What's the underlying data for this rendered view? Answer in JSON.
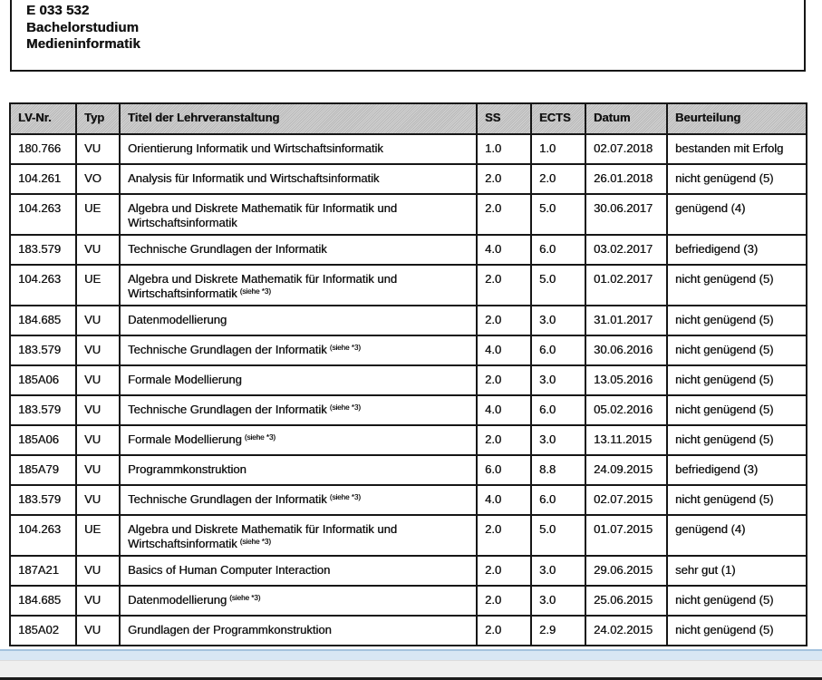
{
  "page": {
    "background": "#ffffff",
    "header_row_bg": "#c7c7c7",
    "border_color": "#161616",
    "statusbar_blue_color": "#d8e7f4",
    "statusbar_blue_edge": "#a4c3de",
    "statusbar_gray_color": "#efefef",
    "bottom_line_color": "#1c1c1c"
  },
  "program_box": {
    "lines": [
      "E 033 532",
      "Bachelorstudium",
      "Medieninformatik"
    ]
  },
  "table": {
    "headers": [
      "LV-Nr.",
      "Typ",
      "Titel der Lehrveranstaltung",
      "SS",
      "ECTS",
      "Datum",
      "Beurteilung"
    ],
    "rows": [
      {
        "nr": "180.766",
        "typ": "VU",
        "titel": "Orientierung Informatik und Wirtschaftsinformatik",
        "note": "",
        "ss": "1.0",
        "ects": "1.0",
        "datum": "02.07.2018",
        "beurteilung": "bestanden mit Erfolg"
      },
      {
        "nr": "104.261",
        "typ": "VO",
        "titel": "Analysis für Informatik und Wirtschaftsinformatik",
        "note": "",
        "ss": "2.0",
        "ects": "2.0",
        "datum": "26.01.2018",
        "beurteilung": "nicht genügend (5)"
      },
      {
        "nr": "104.263",
        "typ": "UE",
        "titel": "Algebra und Diskrete Mathematik für Informatik und Wirtschaftsinformatik",
        "note": "",
        "ss": "2.0",
        "ects": "5.0",
        "datum": "30.06.2017",
        "beurteilung": "genügend (4)"
      },
      {
        "nr": "183.579",
        "typ": "VU",
        "titel": "Technische Grundlagen der Informatik",
        "note": "",
        "ss": "4.0",
        "ects": "6.0",
        "datum": "03.02.2017",
        "beurteilung": "befriedigend (3)"
      },
      {
        "nr": "104.263",
        "typ": "UE",
        "titel": "Algebra und Diskrete Mathematik für Informatik und Wirtschaftsinformatik",
        "note": "(siehe *3)",
        "ss": "2.0",
        "ects": "5.0",
        "datum": "01.02.2017",
        "beurteilung": "nicht genügend (5)"
      },
      {
        "nr": "184.685",
        "typ": "VU",
        "titel": "Datenmodellierung",
        "note": "",
        "ss": "2.0",
        "ects": "3.0",
        "datum": "31.01.2017",
        "beurteilung": "nicht genügend (5)"
      },
      {
        "nr": "183.579",
        "typ": "VU",
        "titel": "Technische Grundlagen der Informatik",
        "note": "(siehe *3)",
        "ss": "4.0",
        "ects": "6.0",
        "datum": "30.06.2016",
        "beurteilung": "nicht genügend (5)"
      },
      {
        "nr": "185A06",
        "typ": "VU",
        "titel": "Formale Modellierung",
        "note": "",
        "ss": "2.0",
        "ects": "3.0",
        "datum": "13.05.2016",
        "beurteilung": "nicht genügend (5)"
      },
      {
        "nr": "183.579",
        "typ": "VU",
        "titel": "Technische Grundlagen der Informatik",
        "note": "(siehe *3)",
        "ss": "4.0",
        "ects": "6.0",
        "datum": "05.02.2016",
        "beurteilung": "nicht genügend (5)"
      },
      {
        "nr": "185A06",
        "typ": "VU",
        "titel": "Formale Modellierung",
        "note": "(siehe *3)",
        "ss": "2.0",
        "ects": "3.0",
        "datum": "13.11.2015",
        "beurteilung": "nicht genügend (5)"
      },
      {
        "nr": "185A79",
        "typ": "VU",
        "titel": "Programmkonstruktion",
        "note": "",
        "ss": "6.0",
        "ects": "8.8",
        "datum": "24.09.2015",
        "beurteilung": "befriedigend (3)"
      },
      {
        "nr": "183.579",
        "typ": "VU",
        "titel": "Technische Grundlagen der Informatik",
        "note": "(siehe *3)",
        "ss": "4.0",
        "ects": "6.0",
        "datum": "02.07.2015",
        "beurteilung": "nicht genügend (5)"
      },
      {
        "nr": "104.263",
        "typ": "UE",
        "titel": "Algebra und Diskrete Mathematik für Informatik und Wirtschaftsinformatik",
        "note": "(siehe *3)",
        "ss": "2.0",
        "ects": "5.0",
        "datum": "01.07.2015",
        "beurteilung": "genügend (4)"
      },
      {
        "nr": "187A21",
        "typ": "VU",
        "titel": "Basics of Human Computer Interaction",
        "note": "",
        "ss": "2.0",
        "ects": "3.0",
        "datum": "29.06.2015",
        "beurteilung": "sehr gut (1)"
      },
      {
        "nr": "184.685",
        "typ": "VU",
        "titel": "Datenmodellierung",
        "note": "(siehe *3)",
        "ss": "2.0",
        "ects": "3.0",
        "datum": "25.06.2015",
        "beurteilung": "nicht genügend (5)"
      },
      {
        "nr": "185A02",
        "typ": "VU",
        "titel": "Grundlagen der Programmkonstruktion",
        "note": "",
        "ss": "2.0",
        "ects": "2.9",
        "datum": "24.02.2015",
        "beurteilung": "nicht genügend (5)"
      }
    ]
  }
}
